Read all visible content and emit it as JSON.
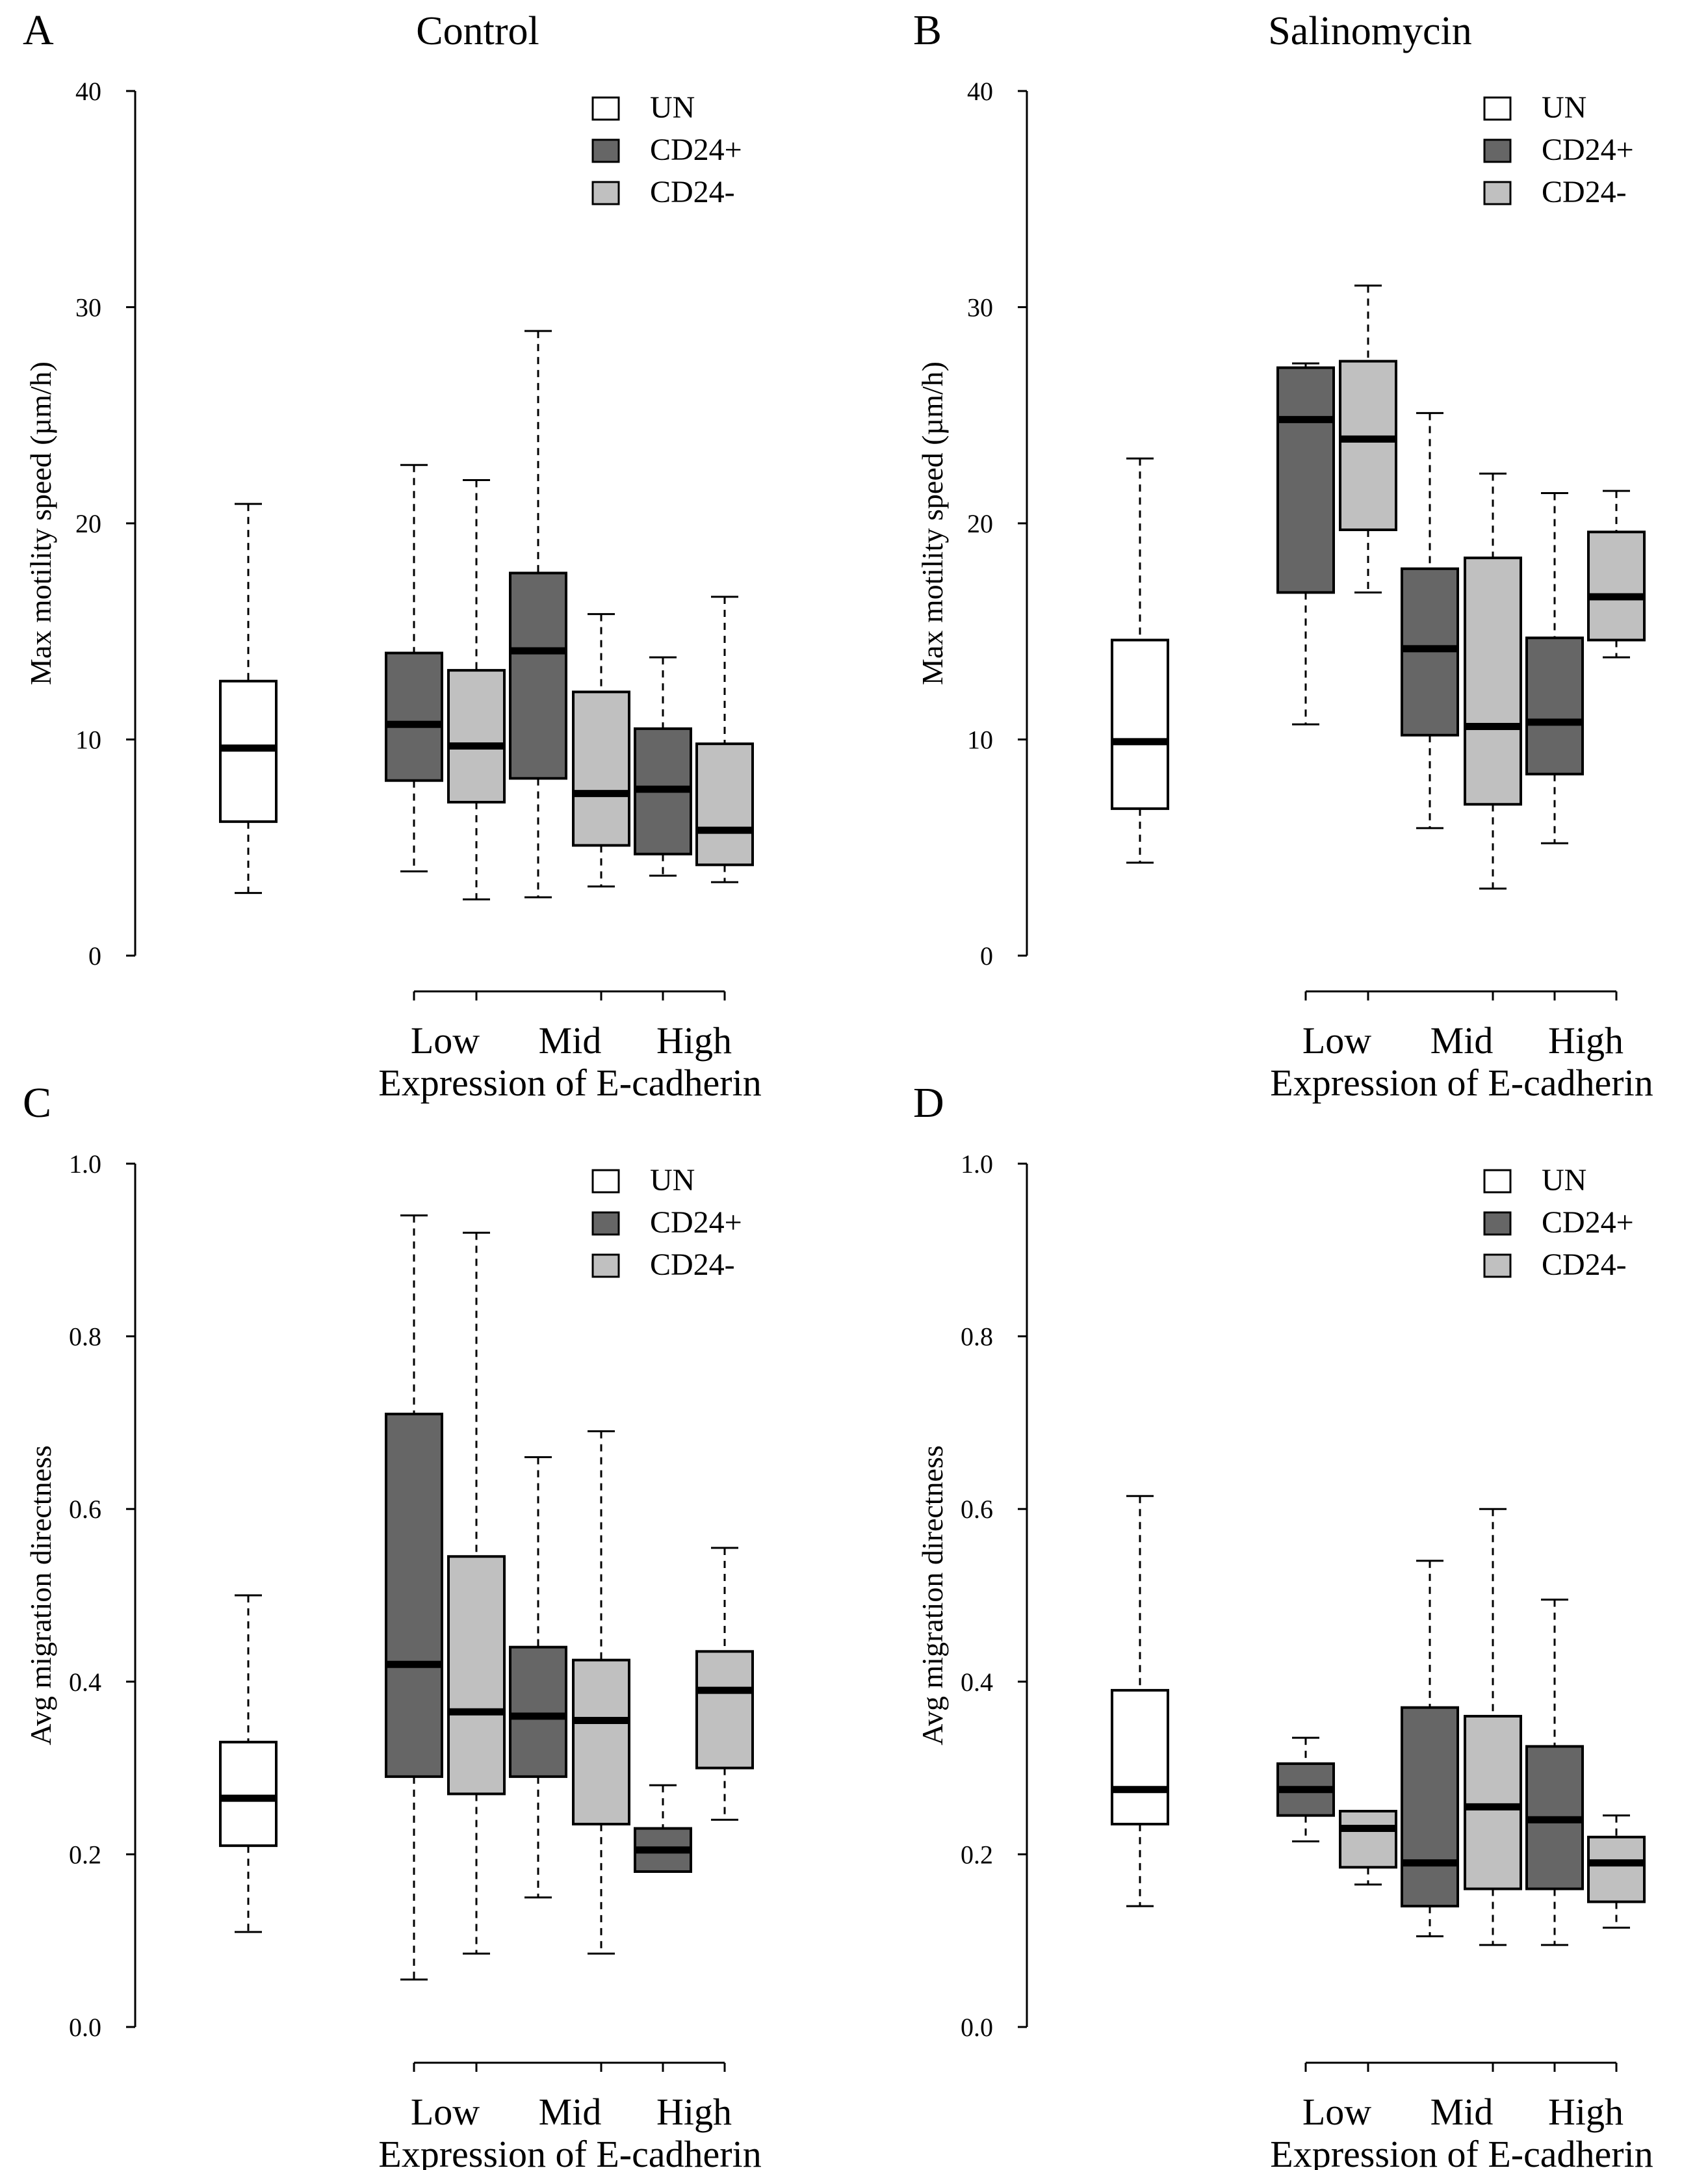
{
  "colors": {
    "UN": "#ffffff",
    "CD24+": "#666666",
    "CD24-": "#c0c0c0",
    "ink": "#000000"
  },
  "legend": [
    "UN",
    "CD24+",
    "CD24-"
  ],
  "chart_data": [
    {
      "type": "boxplot",
      "panel": "A",
      "title": "Control",
      "ylabel": "Max motility speed (µm/h)",
      "xlabel": "Expression of E-cadherin",
      "categories": [
        "Low",
        "Mid",
        "High"
      ],
      "ylim": [
        0,
        40
      ],
      "yticks": [
        "0",
        "10",
        "20",
        "30",
        "40"
      ],
      "boxes": [
        {
          "group": "UN",
          "category": "",
          "min": 2.9,
          "q1": 6.2,
          "median": 9.6,
          "q3": 12.7,
          "max": 20.9
        },
        {
          "group": "CD24+",
          "category": "Low",
          "min": 3.9,
          "q1": 8.1,
          "median": 10.7,
          "q3": 14.0,
          "max": 22.7
        },
        {
          "group": "CD24-",
          "category": "Low",
          "min": 2.6,
          "q1": 7.1,
          "median": 9.7,
          "q3": 13.2,
          "max": 22.0
        },
        {
          "group": "CD24+",
          "category": "Mid",
          "min": 2.7,
          "q1": 8.2,
          "median": 14.1,
          "q3": 17.7,
          "max": 28.9
        },
        {
          "group": "CD24-",
          "category": "Mid",
          "min": 3.2,
          "q1": 5.1,
          "median": 7.5,
          "q3": 12.2,
          "max": 15.8
        },
        {
          "group": "CD24+",
          "category": "High",
          "min": 3.7,
          "q1": 4.7,
          "median": 7.7,
          "q3": 10.5,
          "max": 13.8
        },
        {
          "group": "CD24-",
          "category": "High",
          "min": 3.4,
          "q1": 4.2,
          "median": 5.8,
          "q3": 9.8,
          "max": 16.6
        }
      ]
    },
    {
      "type": "boxplot",
      "panel": "B",
      "title": "Salinomycin",
      "ylabel": "Max motility speed (µm/h)",
      "xlabel": "Expression of E-cadherin",
      "categories": [
        "Low",
        "Mid",
        "High"
      ],
      "ylim": [
        0,
        40
      ],
      "yticks": [
        "0",
        "10",
        "20",
        "30",
        "40"
      ],
      "boxes": [
        {
          "group": "UN",
          "category": "",
          "min": 4.3,
          "q1": 6.8,
          "median": 9.9,
          "q3": 14.6,
          "max": 23.0
        },
        {
          "group": "CD24+",
          "category": "Low",
          "min": 10.7,
          "q1": 16.8,
          "median": 24.8,
          "q3": 27.2,
          "max": 27.4
        },
        {
          "group": "CD24-",
          "category": "Low",
          "min": 16.8,
          "q1": 19.7,
          "median": 23.9,
          "q3": 27.5,
          "max": 31.0
        },
        {
          "group": "CD24+",
          "category": "Mid",
          "min": 5.9,
          "q1": 10.2,
          "median": 14.2,
          "q3": 17.9,
          "max": 25.1
        },
        {
          "group": "CD24-",
          "category": "Mid",
          "min": 3.1,
          "q1": 7.0,
          "median": 10.6,
          "q3": 18.4,
          "max": 22.3
        },
        {
          "group": "CD24+",
          "category": "High",
          "min": 5.2,
          "q1": 8.4,
          "median": 10.8,
          "q3": 14.7,
          "max": 21.4
        },
        {
          "group": "CD24-",
          "category": "High",
          "min": 13.8,
          "q1": 14.6,
          "median": 16.6,
          "q3": 19.6,
          "max": 21.5
        }
      ]
    },
    {
      "type": "boxplot",
      "panel": "C",
      "title": "",
      "ylabel": "Avg migration directness",
      "xlabel": "Expression of E-cadherin",
      "categories": [
        "Low",
        "Mid",
        "High"
      ],
      "ylim": [
        0,
        1
      ],
      "yticks": [
        "0.0",
        "0.2",
        "0.4",
        "0.6",
        "0.8",
        "1.0"
      ],
      "boxes": [
        {
          "group": "UN",
          "category": "",
          "min": 0.11,
          "q1": 0.21,
          "median": 0.265,
          "q3": 0.33,
          "max": 0.5
        },
        {
          "group": "CD24+",
          "category": "Low",
          "min": 0.055,
          "q1": 0.29,
          "median": 0.42,
          "q3": 0.71,
          "max": 0.94
        },
        {
          "group": "CD24-",
          "category": "Low",
          "min": 0.085,
          "q1": 0.27,
          "median": 0.365,
          "q3": 0.545,
          "max": 0.92
        },
        {
          "group": "CD24+",
          "category": "Mid",
          "min": 0.15,
          "q1": 0.29,
          "median": 0.36,
          "q3": 0.44,
          "max": 0.66
        },
        {
          "group": "CD24-",
          "category": "Mid",
          "min": 0.085,
          "q1": 0.235,
          "median": 0.355,
          "q3": 0.425,
          "max": 0.69
        },
        {
          "group": "CD24+",
          "category": "High",
          "min": 0.18,
          "q1": 0.18,
          "median": 0.205,
          "q3": 0.23,
          "max": 0.28
        },
        {
          "group": "CD24-",
          "category": "High",
          "min": 0.24,
          "q1": 0.3,
          "median": 0.39,
          "q3": 0.435,
          "max": 0.555
        }
      ]
    },
    {
      "type": "boxplot",
      "panel": "D",
      "title": "",
      "ylabel": "Avg migration directness",
      "xlabel": "Expression of E-cadherin",
      "categories": [
        "Low",
        "Mid",
        "High"
      ],
      "ylim": [
        0,
        1
      ],
      "yticks": [
        "0.0",
        "0.2",
        "0.4",
        "0.6",
        "0.8",
        "1.0"
      ],
      "boxes": [
        {
          "group": "UN",
          "category": "",
          "min": 0.14,
          "q1": 0.235,
          "median": 0.275,
          "q3": 0.39,
          "max": 0.615
        },
        {
          "group": "CD24+",
          "category": "Low",
          "min": 0.215,
          "q1": 0.245,
          "median": 0.275,
          "q3": 0.305,
          "max": 0.335
        },
        {
          "group": "CD24-",
          "category": "Low",
          "min": 0.165,
          "q1": 0.185,
          "median": 0.23,
          "q3": 0.25,
          "max": 0.25
        },
        {
          "group": "CD24+",
          "category": "Mid",
          "min": 0.105,
          "q1": 0.14,
          "median": 0.19,
          "q3": 0.37,
          "max": 0.54
        },
        {
          "group": "CD24-",
          "category": "Mid",
          "min": 0.095,
          "q1": 0.16,
          "median": 0.255,
          "q3": 0.36,
          "max": 0.6
        },
        {
          "group": "CD24+",
          "category": "High",
          "min": 0.095,
          "q1": 0.16,
          "median": 0.24,
          "q3": 0.325,
          "max": 0.495
        },
        {
          "group": "CD24-",
          "category": "High",
          "min": 0.115,
          "q1": 0.145,
          "median": 0.19,
          "q3": 0.22,
          "max": 0.245
        }
      ]
    }
  ]
}
